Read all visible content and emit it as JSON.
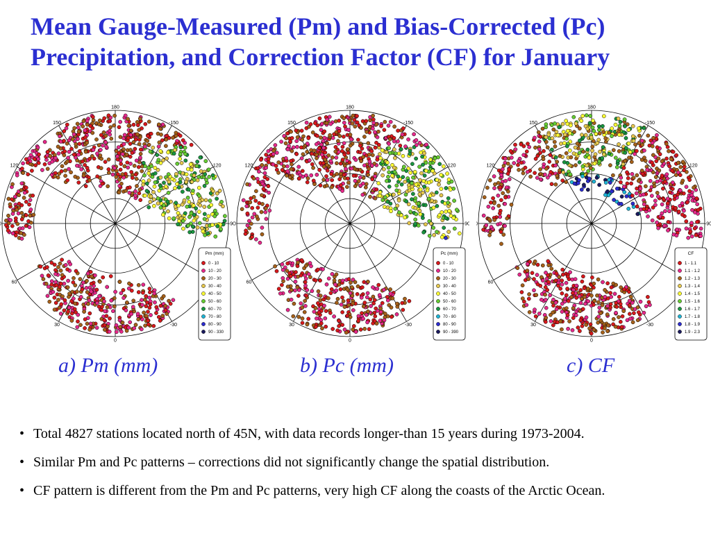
{
  "title": {
    "line1": "Mean Gauge-Measured (Pm) and Bias-Corrected (Pc)",
    "line2": "Precipitation, and Correction Factor (CF) for January"
  },
  "maps": [
    {
      "id": "pm",
      "caption": "a) Pm (mm)",
      "legend_title": "Pm (mm)",
      "classes": [
        "0 - 10",
        "10 - 20",
        "20 - 30",
        "30 - 40",
        "40 - 50",
        "50 - 60",
        "60 - 70",
        "70 - 80",
        "80 - 90",
        "90 - 330"
      ],
      "colors": [
        "#d7191c",
        "#e7298a",
        "#a6611a",
        "#e6c84f",
        "#ffff33",
        "#66cc33",
        "#1a9641",
        "#1fb5d6",
        "#2c2ccf",
        "#1a1a5e"
      ]
    },
    {
      "id": "pc",
      "caption": "b) Pc (mm)",
      "legend_title": "Pc (mm)",
      "classes": [
        "0 - 10",
        "10 - 20",
        "20 - 30",
        "30 - 40",
        "40 - 50",
        "50 - 60",
        "60 - 70",
        "70 - 80",
        "80 - 90",
        "90 - 390"
      ],
      "colors": [
        "#d7191c",
        "#e7298a",
        "#a6611a",
        "#e6c84f",
        "#ffff33",
        "#66cc33",
        "#1a9641",
        "#1fb5d6",
        "#2c2ccf",
        "#1a1a5e"
      ]
    },
    {
      "id": "cf",
      "caption": "c) CF",
      "legend_title": "CF",
      "classes": [
        "1 - 1.1",
        "1.1 - 1.2",
        "1.2 - 1.3",
        "1.3 - 1.4",
        "1.4 - 1.5",
        "1.5 - 1.6",
        "1.6 - 1.7",
        "1.7 - 1.8",
        "1.8 - 1.9",
        "1.9 - 2.3"
      ],
      "colors": [
        "#d7191c",
        "#e7298a",
        "#a6611a",
        "#e6c84f",
        "#ffff33",
        "#66cc33",
        "#1a9641",
        "#1fb5d6",
        "#2c2ccf",
        "#1a1a5e"
      ]
    }
  ],
  "longitude_labels": [
    "0",
    "30",
    "60",
    "90",
    "120",
    "150",
    "180",
    "-150",
    "-120",
    "-90",
    "-60",
    "-30"
  ],
  "bullets": [
    "Total 4827 stations located north of 45N, with data records longer-than 15 years during 1973-2004.",
    "Similar Pm and Pc patterns – corrections did not significantly change the spatial distribution.",
    "CF pattern is different from the Pm and Pc patterns, very high CF along the coasts of the Arctic Ocean."
  ],
  "bullet_symbol": "•"
}
